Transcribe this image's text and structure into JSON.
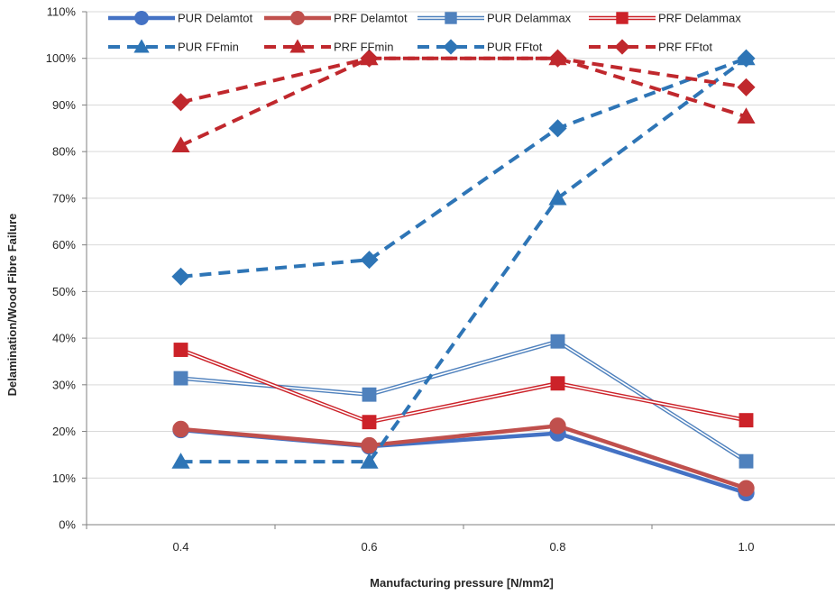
{
  "chart_data": {
    "type": "line",
    "xlabel": "Manufacturing pressure [N/mm2]",
    "ylabel": "Delamination/Wood Fibre Failure",
    "categories": [
      "0.4",
      "0.6",
      "0.8",
      "1.0"
    ],
    "yticks": [
      "0%",
      "10%",
      "20%",
      "30%",
      "40%",
      "50%",
      "60%",
      "70%",
      "80%",
      "90%",
      "100%",
      "110%"
    ],
    "ylim": [
      0,
      110
    ],
    "grid": "horizontal",
    "legend_position": "top",
    "series": [
      {
        "name": "PUR Delamtot",
        "values": [
          20.3,
          16.8,
          19.6,
          6.8
        ],
        "color": "#4472c4",
        "style": "solid-thick",
        "marker": "circle"
      },
      {
        "name": "PRF Delamtot",
        "values": [
          20.5,
          17.0,
          21.2,
          7.8
        ],
        "color": "#c0504d",
        "style": "solid-thick",
        "marker": "circle"
      },
      {
        "name": "PUR Delammax",
        "values": [
          31.4,
          27.9,
          39.3,
          13.6
        ],
        "color": "#4f81bd",
        "style": "double",
        "marker": "square"
      },
      {
        "name": "PRF Delammax",
        "values": [
          37.5,
          22.0,
          30.3,
          22.4
        ],
        "color": "#cc2229",
        "style": "double",
        "marker": "square"
      },
      {
        "name": "PUR FFmin",
        "values": [
          13.5,
          13.5,
          70.0,
          100.0
        ],
        "color": "#2e75b6",
        "style": "dashed",
        "marker": "triangle"
      },
      {
        "name": "PRF FFmin",
        "values": [
          81.3,
          100.0,
          100.0,
          87.5
        ],
        "color": "#c0282d",
        "style": "dashed",
        "marker": "triangle"
      },
      {
        "name": "PUR FFtot",
        "values": [
          53.2,
          56.8,
          85.0,
          100.0
        ],
        "color": "#2e75b6",
        "style": "dashed",
        "marker": "diamond"
      },
      {
        "name": "PRF FFtot",
        "values": [
          90.6,
          100.0,
          100.0,
          93.8
        ],
        "color": "#c0282d",
        "style": "dashed",
        "marker": "diamond"
      }
    ]
  }
}
